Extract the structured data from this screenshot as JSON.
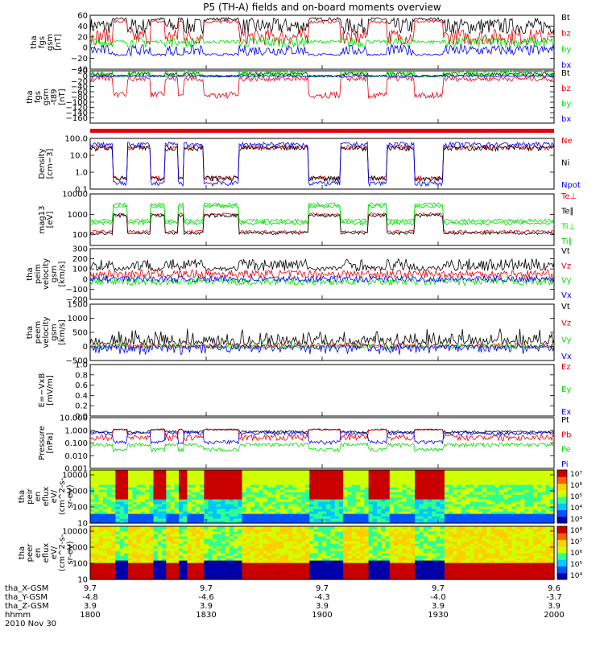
{
  "title": "P5 (TH-A) fields and on-board moments overview",
  "footer": {
    "row_labels": [
      "tha_X-GSM",
      "tha_Y-GSM",
      "tha_Z-GSM",
      "hhmm",
      "2010 Nov 30"
    ],
    "columns": [
      {
        "x": "9.7",
        "y": "-4.8",
        "z": "3.9",
        "hhmm": "1800"
      },
      {
        "x": "9.7",
        "y": "-4.6",
        "z": "3.9",
        "hhmm": "1830"
      },
      {
        "x": "9.7",
        "y": "-4.3",
        "z": "3.9",
        "hhmm": "1900"
      },
      {
        "x": "9.7",
        "y": "-4.0",
        "z": "3.9",
        "hhmm": "1930"
      },
      {
        "x": "9.6",
        "y": "-3.7",
        "z": "3.9",
        "hhmm": "2000"
      }
    ]
  },
  "colors": {
    "black": "#000000",
    "red": "#e8000b",
    "green": "#00e000",
    "blue": "#0000ee"
  },
  "chart_data": [
    {
      "type": "line",
      "ylabel": [
        "tha",
        "fgs",
        "gsm",
        "[nT]"
      ],
      "ylim": [
        -40,
        60
      ],
      "scale": "linear",
      "ticks": [
        "60",
        "40",
        "20",
        "0",
        "−20",
        "−40"
      ],
      "tick_values": [
        60,
        40,
        20,
        0,
        -20,
        -40
      ],
      "legend": [
        {
          "name": "Bt",
          "color": "black"
        },
        {
          "name": "bz",
          "color": "red"
        },
        {
          "name": "by",
          "color": "green"
        },
        {
          "name": "bx",
          "color": "blue"
        }
      ]
    },
    {
      "type": "line",
      "ylabel": [
        "tha",
        "fgs",
        "gsm",
        "-t89",
        "[nT]"
      ],
      "ylim": [
        -180,
        20
      ],
      "scale": "linear",
      "ticks": [
        "20",
        "0",
        "−20",
        "−40",
        "−60",
        "−80",
        "−100",
        "−120",
        "−140",
        "−160"
      ],
      "tick_values": [
        20,
        0,
        -20,
        -40,
        -60,
        -80,
        -100,
        -120,
        -140,
        -160
      ],
      "legend": [
        {
          "name": "Bt",
          "color": "black"
        },
        {
          "name": "bz",
          "color": "red"
        },
        {
          "name": "by",
          "color": "green"
        },
        {
          "name": "bx",
          "color": "blue"
        }
      ]
    },
    {
      "type": "line",
      "ylabel": [
        "Density",
        "[cm−3]"
      ],
      "ylim": [
        0.1,
        100
      ],
      "scale": "log",
      "ticks": [
        "100.0",
        "10.0",
        "1.0",
        "0.1"
      ],
      "tick_values": [
        100,
        10,
        1,
        0.1
      ],
      "legend": [
        {
          "name": "Ne",
          "color": "red"
        },
        {
          "name": "Ni",
          "color": "black"
        },
        {
          "name": "Npot",
          "color": "blue"
        }
      ]
    },
    {
      "type": "line",
      "ylabel": [
        "mag13",
        "[eV]"
      ],
      "ylim": [
        30,
        10000
      ],
      "scale": "log",
      "ticks": [
        "10000",
        "1000",
        "100"
      ],
      "tick_values": [
        10000,
        1000,
        100
      ],
      "legend": [
        {
          "name": "Te⊥",
          "color": "red"
        },
        {
          "name": "Te∥",
          "color": "black"
        },
        {
          "name": "Ti⊥",
          "color": "green"
        },
        {
          "name": "Ti∥",
          "color": "green"
        }
      ]
    },
    {
      "type": "line",
      "ylabel": [
        "tha",
        "peim",
        "velocity",
        "gsm",
        "[km/s]"
      ],
      "ylim": [
        -200,
        300
      ],
      "scale": "linear",
      "ticks": [
        "300",
        "200",
        "100",
        "0",
        "−100",
        "−200"
      ],
      "tick_values": [
        300,
        200,
        100,
        0,
        -100,
        -200
      ],
      "legend": [
        {
          "name": "Vt",
          "color": "black"
        },
        {
          "name": "Vz",
          "color": "red"
        },
        {
          "name": "Vy",
          "color": "green"
        },
        {
          "name": "Vx",
          "color": "blue"
        }
      ]
    },
    {
      "type": "line",
      "ylabel": [
        "tha",
        "peem",
        "velocity",
        "gsm",
        "[km/s]"
      ],
      "ylim": [
        -500,
        1500
      ],
      "scale": "linear",
      "ticks": [
        "1500",
        "1000",
        "500",
        "0",
        "−500"
      ],
      "tick_values": [
        1500,
        1000,
        500,
        0,
        -500
      ],
      "legend": [
        {
          "name": "Vt",
          "color": "black"
        },
        {
          "name": "Vz",
          "color": "red"
        },
        {
          "name": "Vy",
          "color": "green"
        },
        {
          "name": "Vx",
          "color": "blue"
        }
      ]
    },
    {
      "type": "line",
      "ylabel": [
        "E=−VxB",
        "[mV/m]"
      ],
      "ylim": [
        0,
        1
      ],
      "scale": "linear",
      "ticks": [
        "1.0",
        "0.8",
        "0.6",
        "0.4",
        "0.2",
        "0.0"
      ],
      "tick_values": [
        1,
        0.8,
        0.6,
        0.4,
        0.2,
        0
      ],
      "legend": [
        {
          "name": "Ez",
          "color": "red"
        },
        {
          "name": "Ey",
          "color": "green"
        },
        {
          "name": "Ex",
          "color": "blue"
        }
      ]
    },
    {
      "type": "line",
      "ylabel": [
        "Pressure",
        "[nPa]"
      ],
      "ylim": [
        0.001,
        10
      ],
      "scale": "log",
      "ticks": [
        "10.000",
        "1.000",
        "0.100",
        "0.010",
        "0.001"
      ],
      "tick_values": [
        10,
        1,
        0.1,
        0.01,
        0.001
      ],
      "legend": [
        {
          "name": "Pt",
          "color": "black"
        },
        {
          "name": "Pb",
          "color": "red"
        },
        {
          "name": "Pe",
          "color": "green"
        },
        {
          "name": "Pi",
          "color": "blue"
        }
      ]
    },
    {
      "type": "heatmap",
      "ylabel": [
        "tha",
        "peir",
        "en",
        "eflux",
        "eV/",
        "(cm^2-s-",
        "sr-eV)"
      ],
      "ylim": [
        10,
        20000
      ],
      "scale": "log",
      "ticks": [
        "10000",
        "1000",
        "100",
        "10"
      ],
      "tick_values": [
        10000,
        1000,
        100,
        10
      ],
      "colorbar": [
        "10⁷",
        "10⁶",
        "10⁵",
        "10⁴",
        "10³"
      ]
    },
    {
      "type": "heatmap",
      "ylabel": [
        "tha",
        "peer",
        "en",
        "eflux",
        "eV/",
        "(cm^2-s-",
        "sr-eV)"
      ],
      "ylim": [
        10,
        20000
      ],
      "scale": "log",
      "ticks": [
        "10000",
        "1000",
        "100",
        "10"
      ],
      "tick_values": [
        10000,
        1000,
        100,
        10
      ],
      "colorbar": [
        "10⁸",
        "10⁷",
        "10⁶",
        "10⁵",
        "10⁴"
      ]
    }
  ]
}
